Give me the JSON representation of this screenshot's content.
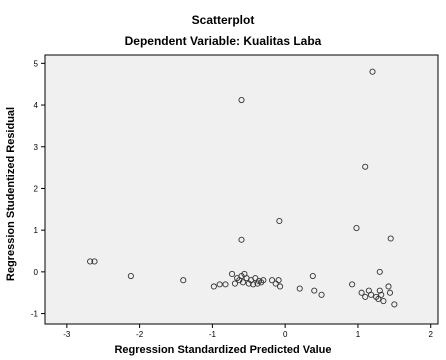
{
  "chart_data": {
    "type": "scatter",
    "title": "Scatterplot",
    "subtitle": "Dependent Variable: Kualitas Laba",
    "xlabel": "Regression Standardized Predicted Value",
    "ylabel": "Regression Studentized Residual",
    "xlim": [
      -3.3,
      2.1
    ],
    "ylim": [
      -1.25,
      5.2
    ],
    "xticks": [
      -3,
      -2,
      -1,
      0,
      1,
      2
    ],
    "yticks": [
      -1,
      0,
      1,
      2,
      3,
      4,
      5
    ],
    "grid": false,
    "background_color": "#f0f0f0",
    "marker": "hollow-circle",
    "points": [
      {
        "x": -2.68,
        "y": 0.25
      },
      {
        "x": -2.62,
        "y": 0.25
      },
      {
        "x": -2.12,
        "y": -0.1
      },
      {
        "x": -1.4,
        "y": -0.2
      },
      {
        "x": -0.98,
        "y": -0.35
      },
      {
        "x": -0.9,
        "y": -0.3
      },
      {
        "x": -0.82,
        "y": -0.3
      },
      {
        "x": -0.73,
        "y": -0.05
      },
      {
        "x": -0.69,
        "y": -0.28
      },
      {
        "x": -0.66,
        "y": -0.15
      },
      {
        "x": -0.63,
        "y": -0.2
      },
      {
        "x": -0.6,
        "y": -0.1
      },
      {
        "x": -0.58,
        "y": -0.25
      },
      {
        "x": -0.56,
        "y": -0.05
      },
      {
        "x": -0.53,
        "y": -0.15
      },
      {
        "x": -0.5,
        "y": -0.28
      },
      {
        "x": -0.47,
        "y": -0.2
      },
      {
        "x": -0.44,
        "y": -0.3
      },
      {
        "x": -0.41,
        "y": -0.15
      },
      {
        "x": -0.38,
        "y": -0.28
      },
      {
        "x": -0.36,
        "y": -0.22
      },
      {
        "x": -0.33,
        "y": -0.25
      },
      {
        "x": -0.3,
        "y": -0.2
      },
      {
        "x": -0.18,
        "y": -0.2
      },
      {
        "x": -0.13,
        "y": -0.28
      },
      {
        "x": -0.09,
        "y": -0.2
      },
      {
        "x": -0.07,
        "y": -0.35
      },
      {
        "x": 0.2,
        "y": -0.4
      },
      {
        "x": 0.38,
        "y": -0.1
      },
      {
        "x": 0.4,
        "y": -0.45
      },
      {
        "x": 0.5,
        "y": -0.55
      },
      {
        "x": 0.92,
        "y": -0.3
      },
      {
        "x": 1.05,
        "y": -0.5
      },
      {
        "x": 1.1,
        "y": -0.6
      },
      {
        "x": 1.15,
        "y": -0.45
      },
      {
        "x": 1.18,
        "y": -0.55
      },
      {
        "x": 1.25,
        "y": -0.6
      },
      {
        "x": 1.28,
        "y": -0.65
      },
      {
        "x": 1.3,
        "y": -0.45
      },
      {
        "x": 1.32,
        "y": -0.55
      },
      {
        "x": 1.35,
        "y": -0.7
      },
      {
        "x": 1.42,
        "y": -0.35
      },
      {
        "x": 1.44,
        "y": -0.5
      },
      {
        "x": 1.5,
        "y": -0.78
      },
      {
        "x": 1.3,
        "y": 0.0
      },
      {
        "x": -0.6,
        "y": 4.12
      },
      {
        "x": -0.6,
        "y": 0.77
      },
      {
        "x": -0.08,
        "y": 1.22
      },
      {
        "x": 0.98,
        "y": 1.05
      },
      {
        "x": 1.1,
        "y": 2.52
      },
      {
        "x": 1.2,
        "y": 4.8
      },
      {
        "x": 1.45,
        "y": 0.8
      }
    ]
  }
}
